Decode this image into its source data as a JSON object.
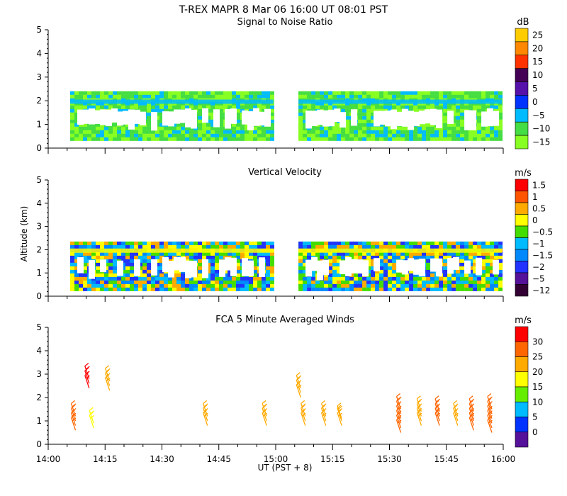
{
  "header": {
    "title": "T-REX   MAPR   8 Mar 06   16:00 UT   08:01   PST"
  },
  "xaxis": {
    "label": "UT  (PST + 8)",
    "ticks": [
      "14:00",
      "14:15",
      "14:30",
      "14:45",
      "15:00",
      "15:15",
      "15:30",
      "15:45",
      "16:00"
    ],
    "range_hours": [
      14.0,
      16.0
    ]
  },
  "yaxis": {
    "label": "Altitude (km)",
    "ticks": [
      "0",
      "1",
      "2",
      "3",
      "4",
      "5"
    ],
    "range_km": [
      0,
      5
    ]
  },
  "chart_data": [
    {
      "type": "heatmap",
      "title": "Signal to Noise Ratio",
      "unit": "dB",
      "xlabel": "UT  (PST + 8)",
      "ylabel": "Altitude (km)",
      "xlim": [
        14.0,
        16.0
      ],
      "ylim": [
        0,
        5
      ],
      "colorbar": {
        "labels": [
          "25",
          "20",
          "15",
          "10",
          "5",
          "0",
          "−5",
          "−10",
          "−15"
        ],
        "colors": [
          "#ffcc00",
          "#ff8800",
          "#ff3300",
          "#440055",
          "#5511aa",
          "#0033ff",
          "#00bbff",
          "#44dd44",
          "#88ff22"
        ]
      },
      "data_gap_hours": [
        14.99,
        15.1
      ],
      "echo_layer_km": [
        0.35,
        2.4
      ]
    },
    {
      "type": "heatmap",
      "title": "Vertical Velocity",
      "unit": "m/s",
      "ylabel": "Altitude (km)",
      "xlim": [
        14.0,
        16.0
      ],
      "ylim": [
        0,
        5
      ],
      "colorbar": {
        "labels": [
          "1.5",
          "1",
          "0.5",
          "0",
          "−0.5",
          "−1",
          "−1.5",
          "−2",
          "−5",
          "−12"
        ],
        "colors": [
          "#ff0000",
          "#ff5500",
          "#ffaa00",
          "#ffff00",
          "#44dd00",
          "#00bbff",
          "#0088ff",
          "#2233ff",
          "#551199",
          "#330033"
        ]
      },
      "data_gap_hours": [
        14.99,
        15.1
      ],
      "echo_layer_km": [
        0.35,
        2.35
      ]
    },
    {
      "type": "scatter",
      "title": "FCA 5 Minute Averaged Winds",
      "unit": "m/s",
      "xlabel": "UT  (PST + 8)",
      "ylabel": "Altitude (km)",
      "xlim": [
        14.0,
        16.0
      ],
      "ylim": [
        0,
        5
      ],
      "colorbar": {
        "labels": [
          "30",
          "25",
          "20",
          "15",
          "10",
          "5",
          "0"
        ],
        "colors": [
          "#ff0000",
          "#ff6600",
          "#ffaa00",
          "#ffff00",
          "#66ee00",
          "#00bbff",
          "#0033ff",
          "#551199"
        ]
      },
      "barbs": [
        {
          "t": 14.12,
          "alt": [
            0.6,
            0.8,
            1.0,
            1.2
          ],
          "speed": 21
        },
        {
          "t": 14.18,
          "alt": [
            2.4,
            2.6,
            2.8
          ],
          "speed": 27
        },
        {
          "t": 14.2,
          "alt": [
            0.7,
            0.9
          ],
          "speed": 15
        },
        {
          "t": 14.27,
          "alt": [
            2.3,
            2.5,
            2.7
          ],
          "speed": 20
        },
        {
          "t": 14.7,
          "alt": [
            0.8,
            1.0,
            1.2
          ],
          "speed": 20
        },
        {
          "t": 14.96,
          "alt": [
            0.8,
            1.0,
            1.2
          ],
          "speed": 20
        },
        {
          "t": 15.11,
          "alt": [
            2.0,
            2.2,
            2.4
          ],
          "speed": 20
        },
        {
          "t": 15.13,
          "alt": [
            0.8,
            1.0,
            1.2
          ],
          "speed": 17
        },
        {
          "t": 15.22,
          "alt": [
            0.8,
            1.0,
            1.2
          ],
          "speed": 17
        },
        {
          "t": 15.29,
          "alt": [
            0.8,
            1.0,
            1.1
          ],
          "speed": 16
        },
        {
          "t": 15.55,
          "alt": [
            0.5,
            0.7,
            0.9,
            1.1,
            1.3,
            1.5
          ],
          "speed": 22
        },
        {
          "t": 15.64,
          "alt": [
            0.8,
            1.0,
            1.2,
            1.4
          ],
          "speed": 20
        },
        {
          "t": 15.72,
          "alt": [
            0.8,
            1.0,
            1.2,
            1.4
          ],
          "speed": 21
        },
        {
          "t": 15.8,
          "alt": [
            0.8,
            1.0,
            1.2
          ],
          "speed": 19
        },
        {
          "t": 15.87,
          "alt": [
            0.6,
            0.8,
            1.0,
            1.2,
            1.4
          ],
          "speed": 22
        },
        {
          "t": 15.95,
          "alt": [
            0.5,
            0.7,
            0.9,
            1.1,
            1.3,
            1.5
          ],
          "speed": 21
        }
      ]
    }
  ]
}
